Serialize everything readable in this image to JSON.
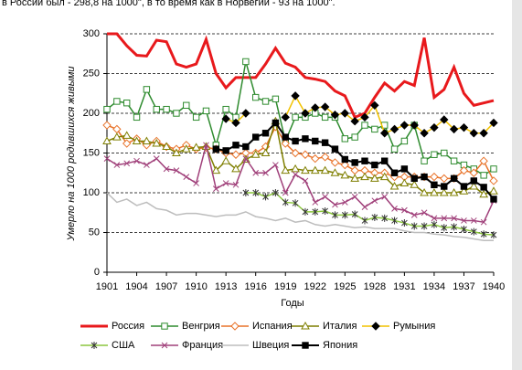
{
  "chart_data": {
    "type": "line",
    "subtitle": "в России был - 298,8 на 1000\", в то время как в Норвегии - 93 на 1000\".",
    "x_label": "Годы",
    "y_label": "Умерло на 1000 родившихся живыми",
    "x": [
      1901,
      1902,
      1903,
      1904,
      1905,
      1906,
      1907,
      1908,
      1909,
      1910,
      1911,
      1912,
      1913,
      1914,
      1915,
      1916,
      1917,
      1918,
      1919,
      1920,
      1921,
      1922,
      1923,
      1924,
      1925,
      1926,
      1927,
      1928,
      1929,
      1930,
      1931,
      1932,
      1933,
      1934,
      1935,
      1936,
      1937,
      1938,
      1939,
      1940
    ],
    "xlim": [
      1901,
      1940
    ],
    "xticks": [
      1901,
      1904,
      1907,
      1910,
      1913,
      1916,
      1919,
      1922,
      1925,
      1928,
      1931,
      1934,
      1937,
      1940
    ],
    "ylim": [
      0,
      300
    ],
    "yticks": [
      0,
      50,
      100,
      150,
      200,
      250,
      300
    ],
    "grid": true,
    "series": [
      {
        "name": "Россия",
        "color": "#e8191c",
        "marker": "none",
        "width": 3,
        "values": [
          300,
          300,
          285,
          273,
          272,
          292,
          290,
          262,
          258,
          262,
          293,
          250,
          232,
          245,
          245,
          245,
          262,
          282,
          263,
          258,
          245,
          243,
          240,
          228,
          222,
          195,
          200,
          220,
          238,
          228,
          240,
          235,
          295,
          220,
          230,
          258,
          225,
          210,
          213,
          216
        ]
      },
      {
        "name": "Венгрия",
        "color": "#2e8b2e",
        "marker": "square-open",
        "width": 1.5,
        "values": [
          205,
          215,
          213,
          195,
          230,
          205,
          205,
          200,
          210,
          195,
          203,
          160,
          205,
          195,
          265,
          220,
          215,
          218,
          165,
          195,
          195,
          200,
          195,
          195,
          168,
          170,
          185,
          180,
          185,
          155,
          165,
          185,
          140,
          148,
          150,
          140,
          135,
          130,
          122,
          130
        ]
      },
      {
        "name": "Испания",
        "color": "#e8732a",
        "marker": "diamond-open",
        "width": 1.5,
        "values": [
          185,
          180,
          162,
          168,
          160,
          165,
          158,
          155,
          160,
          155,
          157,
          155,
          150,
          148,
          150,
          150,
          158,
          183,
          162,
          150,
          148,
          143,
          145,
          138,
          135,
          128,
          128,
          125,
          125,
          120,
          120,
          120,
          120,
          120,
          118,
          118,
          128,
          125,
          140,
          115
        ]
      },
      {
        "name": "Италия",
        "color": "#7f7f00",
        "marker": "triangle-open",
        "width": 1.5,
        "values": [
          165,
          170,
          172,
          165,
          165,
          162,
          158,
          150,
          155,
          157,
          158,
          128,
          140,
          130,
          142,
          148,
          150,
          190,
          128,
          130,
          128,
          128,
          128,
          125,
          122,
          118,
          120,
          118,
          120,
          108,
          112,
          110,
          100,
          100,
          100,
          100,
          102,
          108,
          98,
          102
        ]
      },
      {
        "name": "Румыния",
        "color": "#f2c200",
        "marker": "diamond",
        "width": 1.5,
        "values": [
          null,
          null,
          null,
          null,
          null,
          null,
          null,
          null,
          null,
          null,
          null,
          null,
          193,
          188,
          200,
          null,
          null,
          null,
          195,
          222,
          200,
          207,
          208,
          198,
          200,
          190,
          195,
          210,
          175,
          180,
          185,
          185,
          175,
          182,
          192,
          180,
          182,
          175,
          175,
          188
        ]
      },
      {
        "name": "США",
        "color": "#8cc63f",
        "marker": "star",
        "width": 1.5,
        "values": [
          null,
          null,
          null,
          null,
          null,
          null,
          null,
          null,
          null,
          null,
          null,
          null,
          null,
          null,
          100,
          100,
          95,
          100,
          88,
          87,
          76,
          76,
          77,
          72,
          72,
          73,
          65,
          69,
          68,
          65,
          62,
          58,
          58,
          60,
          56,
          57,
          54,
          51,
          48,
          47
        ]
      },
      {
        "name": "Франция",
        "color": "#a0407a",
        "marker": "cross",
        "width": 1.5,
        "values": [
          143,
          135,
          137,
          140,
          135,
          143,
          130,
          128,
          120,
          112,
          160,
          105,
          112,
          110,
          143,
          125,
          125,
          135,
          100,
          123,
          115,
          88,
          95,
          85,
          88,
          95,
          82,
          90,
          95,
          80,
          78,
          72,
          75,
          68,
          68,
          68,
          65,
          65,
          63,
          90
        ]
      },
      {
        "name": "Швеция",
        "color": "#bdbdbd",
        "marker": "none",
        "width": 1.5,
        "values": [
          100,
          88,
          92,
          84,
          88,
          80,
          78,
          72,
          74,
          74,
          72,
          70,
          72,
          72,
          76,
          70,
          68,
          65,
          68,
          63,
          65,
          60,
          58,
          60,
          58,
          56,
          57,
          55,
          55,
          55,
          52,
          50,
          50,
          48,
          47,
          45,
          44,
          42,
          40,
          40
        ]
      },
      {
        "name": "Япония",
        "color": "#000000",
        "marker": "square",
        "width": 2,
        "values": [
          null,
          null,
          null,
          null,
          null,
          null,
          null,
          null,
          null,
          null,
          null,
          155,
          153,
          160,
          158,
          170,
          175,
          188,
          170,
          165,
          168,
          165,
          163,
          155,
          142,
          138,
          140,
          135,
          140,
          125,
          130,
          118,
          120,
          110,
          108,
          118,
          108,
          115,
          107,
          92
        ]
      }
    ]
  }
}
